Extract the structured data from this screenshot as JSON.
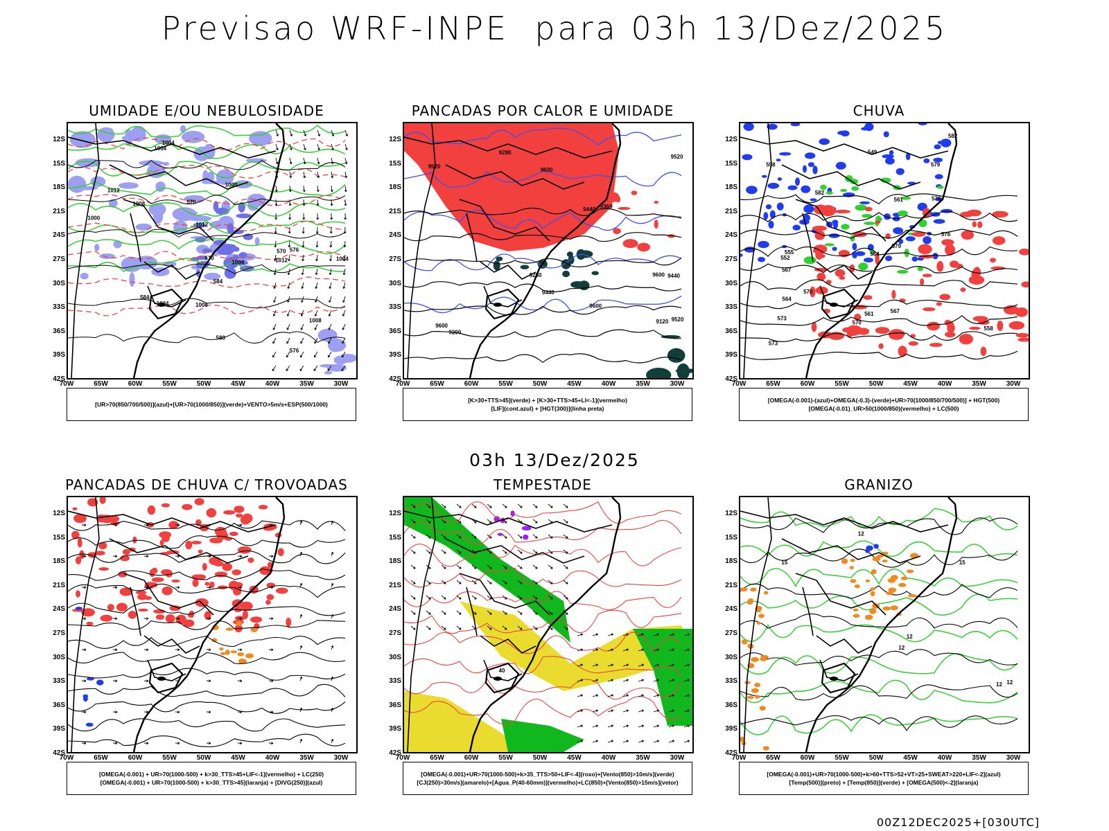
{
  "header": {
    "title": "Previsao WRF-INPE  para 03h 13/Dez/2025",
    "mid_title": "03h 13/Dez/2025",
    "footer_stamp": "00Z12DEC2025+[030UTC]"
  },
  "axes": {
    "lat_labels": [
      "12S",
      "15S",
      "18S",
      "21S",
      "24S",
      "27S",
      "30S",
      "33S",
      "36S",
      "39S",
      "42S"
    ],
    "lon_labels": [
      "70W",
      "65W",
      "60W",
      "55W",
      "50W",
      "45W",
      "40W",
      "35W",
      "30W"
    ]
  },
  "colors": {
    "humid_blue": "#9d9ff0",
    "humid_dark_blue": "#6f6fe6",
    "red_field": "#f2403f",
    "green_contour": "#2ed12e",
    "dark_green": "#123f3c",
    "blue_contour": "#3f4ff0",
    "orange": "#f08a1f",
    "yellow": "#e9dc2e",
    "purple": "#a020f0",
    "green_fill": "#10b81d"
  },
  "panels": [
    {
      "id": "umidade",
      "title": "UMIDADE E/OU NEBULOSIDADE",
      "legend": [
        "[UR>70(850/700/500)](azul)+[UR>70(1000/850)](verde)+VENTO>5m/s+ESP(500/1000)"
      ],
      "contour_labels": [
        "1008",
        "1012",
        "1012",
        "1004",
        "1004",
        "1000",
        "1000",
        "1004",
        "1008",
        "1012",
        "1004",
        "570",
        "576",
        "576",
        "584",
        "588",
        "570",
        "570",
        "584",
        "1008",
        "1004"
      ]
    },
    {
      "id": "pancadas-calor",
      "title": "PANCADAS POR CALOR E UMIDADE",
      "legend": [
        "[K>30+TTS>45](verde) + [K>30+TTS>45+LI<-1](vermelho)",
        "[LIF](cont.azul) + [HGT(300)](linha preta)"
      ],
      "contour_labels": [
        "9600",
        "9600",
        "9600",
        "9520",
        "9600",
        "9440",
        "9520",
        "9440",
        "9520",
        "9440",
        "9360",
        "9280",
        "9200",
        "9120",
        "9280"
      ]
    },
    {
      "id": "chuva",
      "title": "CHUVA",
      "legend": [
        "[OMEGA(-0.001)-(azul)+OMEGA(-0.3)-(verde)+UR>70(1000/850/700/500)] + HGT(500)",
        "[OMEGA(-0.01)_UR>50(1000/850)(vermelho) + LC(500)"
      ],
      "contour_labels": [
        "582",
        "582",
        "576",
        "579",
        "579",
        "576",
        "573",
        "570",
        "573",
        "570",
        "567",
        "564",
        "561",
        "558",
        "555",
        "552",
        "567",
        "564",
        "561",
        "558",
        "549"
      ]
    },
    {
      "id": "pancadas-trovoadas",
      "title": "PANCADAS DE CHUVA C/ TROVOADAS",
      "legend": [
        "[OMEGA(-0.001) + UR>70(1000-500) + k>30_TTS>45+LIF<-1](vermelho) + LC(250)",
        "[OMEGA(-0.001) + UR>70(1000-500) + k>30_TTS>45](laranja) + [DIVG(250)](azul)"
      ],
      "contour_labels": []
    },
    {
      "id": "tempestade",
      "title": "TEMPESTADE",
      "legend": [
        "[OMEGA(-0.001)+UR>70(1000-500)+k>35_TTS>50+LIF<-4](roxo)+[Vento(850)>10m/s](verde)",
        "[CJ(250)>30m/s](amarelo)+[Agua_P(40-60mm)](vermelho)+LC(850)+[Vento(850)>15m/s](vetor)"
      ],
      "contour_labels": [
        "40"
      ]
    },
    {
      "id": "granizo",
      "title": "GRANIZO",
      "legend": [
        "[OMEGA(-0.001)+UR>70(1000-500)+k>60+TTS>52+VT>25+SWEAT>220+LIF<-2](azul)",
        "[Temp(500)](preto) + [Temp(850)](verde) + [OMEGA(500)<-2](laranja)"
      ],
      "contour_labels": [
        "12",
        "12",
        "12",
        "15",
        "12",
        "12",
        "15"
      ]
    }
  ]
}
